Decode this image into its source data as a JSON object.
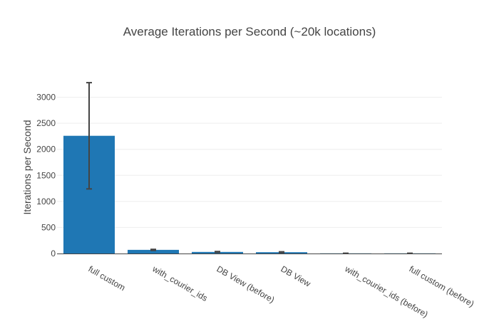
{
  "chart_data": {
    "type": "bar",
    "title": "Average Iterations per Second (~20k locations)",
    "xlabel": "",
    "ylabel": "Iterations per Second",
    "categories": [
      "full custom",
      "with_courier_ids",
      "DB View (before)",
      "DB View",
      "with_courier_ids (before)",
      "full custom (before)"
    ],
    "values": [
      2260,
      70,
      30,
      25,
      3,
      3
    ],
    "error": [
      1020,
      10,
      8,
      8,
      2,
      2
    ],
    "ylim": [
      0,
      3500
    ],
    "yticks": [
      0,
      500,
      1000,
      1500,
      2000,
      2500,
      3000
    ],
    "grid": true,
    "legend": "none",
    "bar_color": "#1f77b4"
  }
}
